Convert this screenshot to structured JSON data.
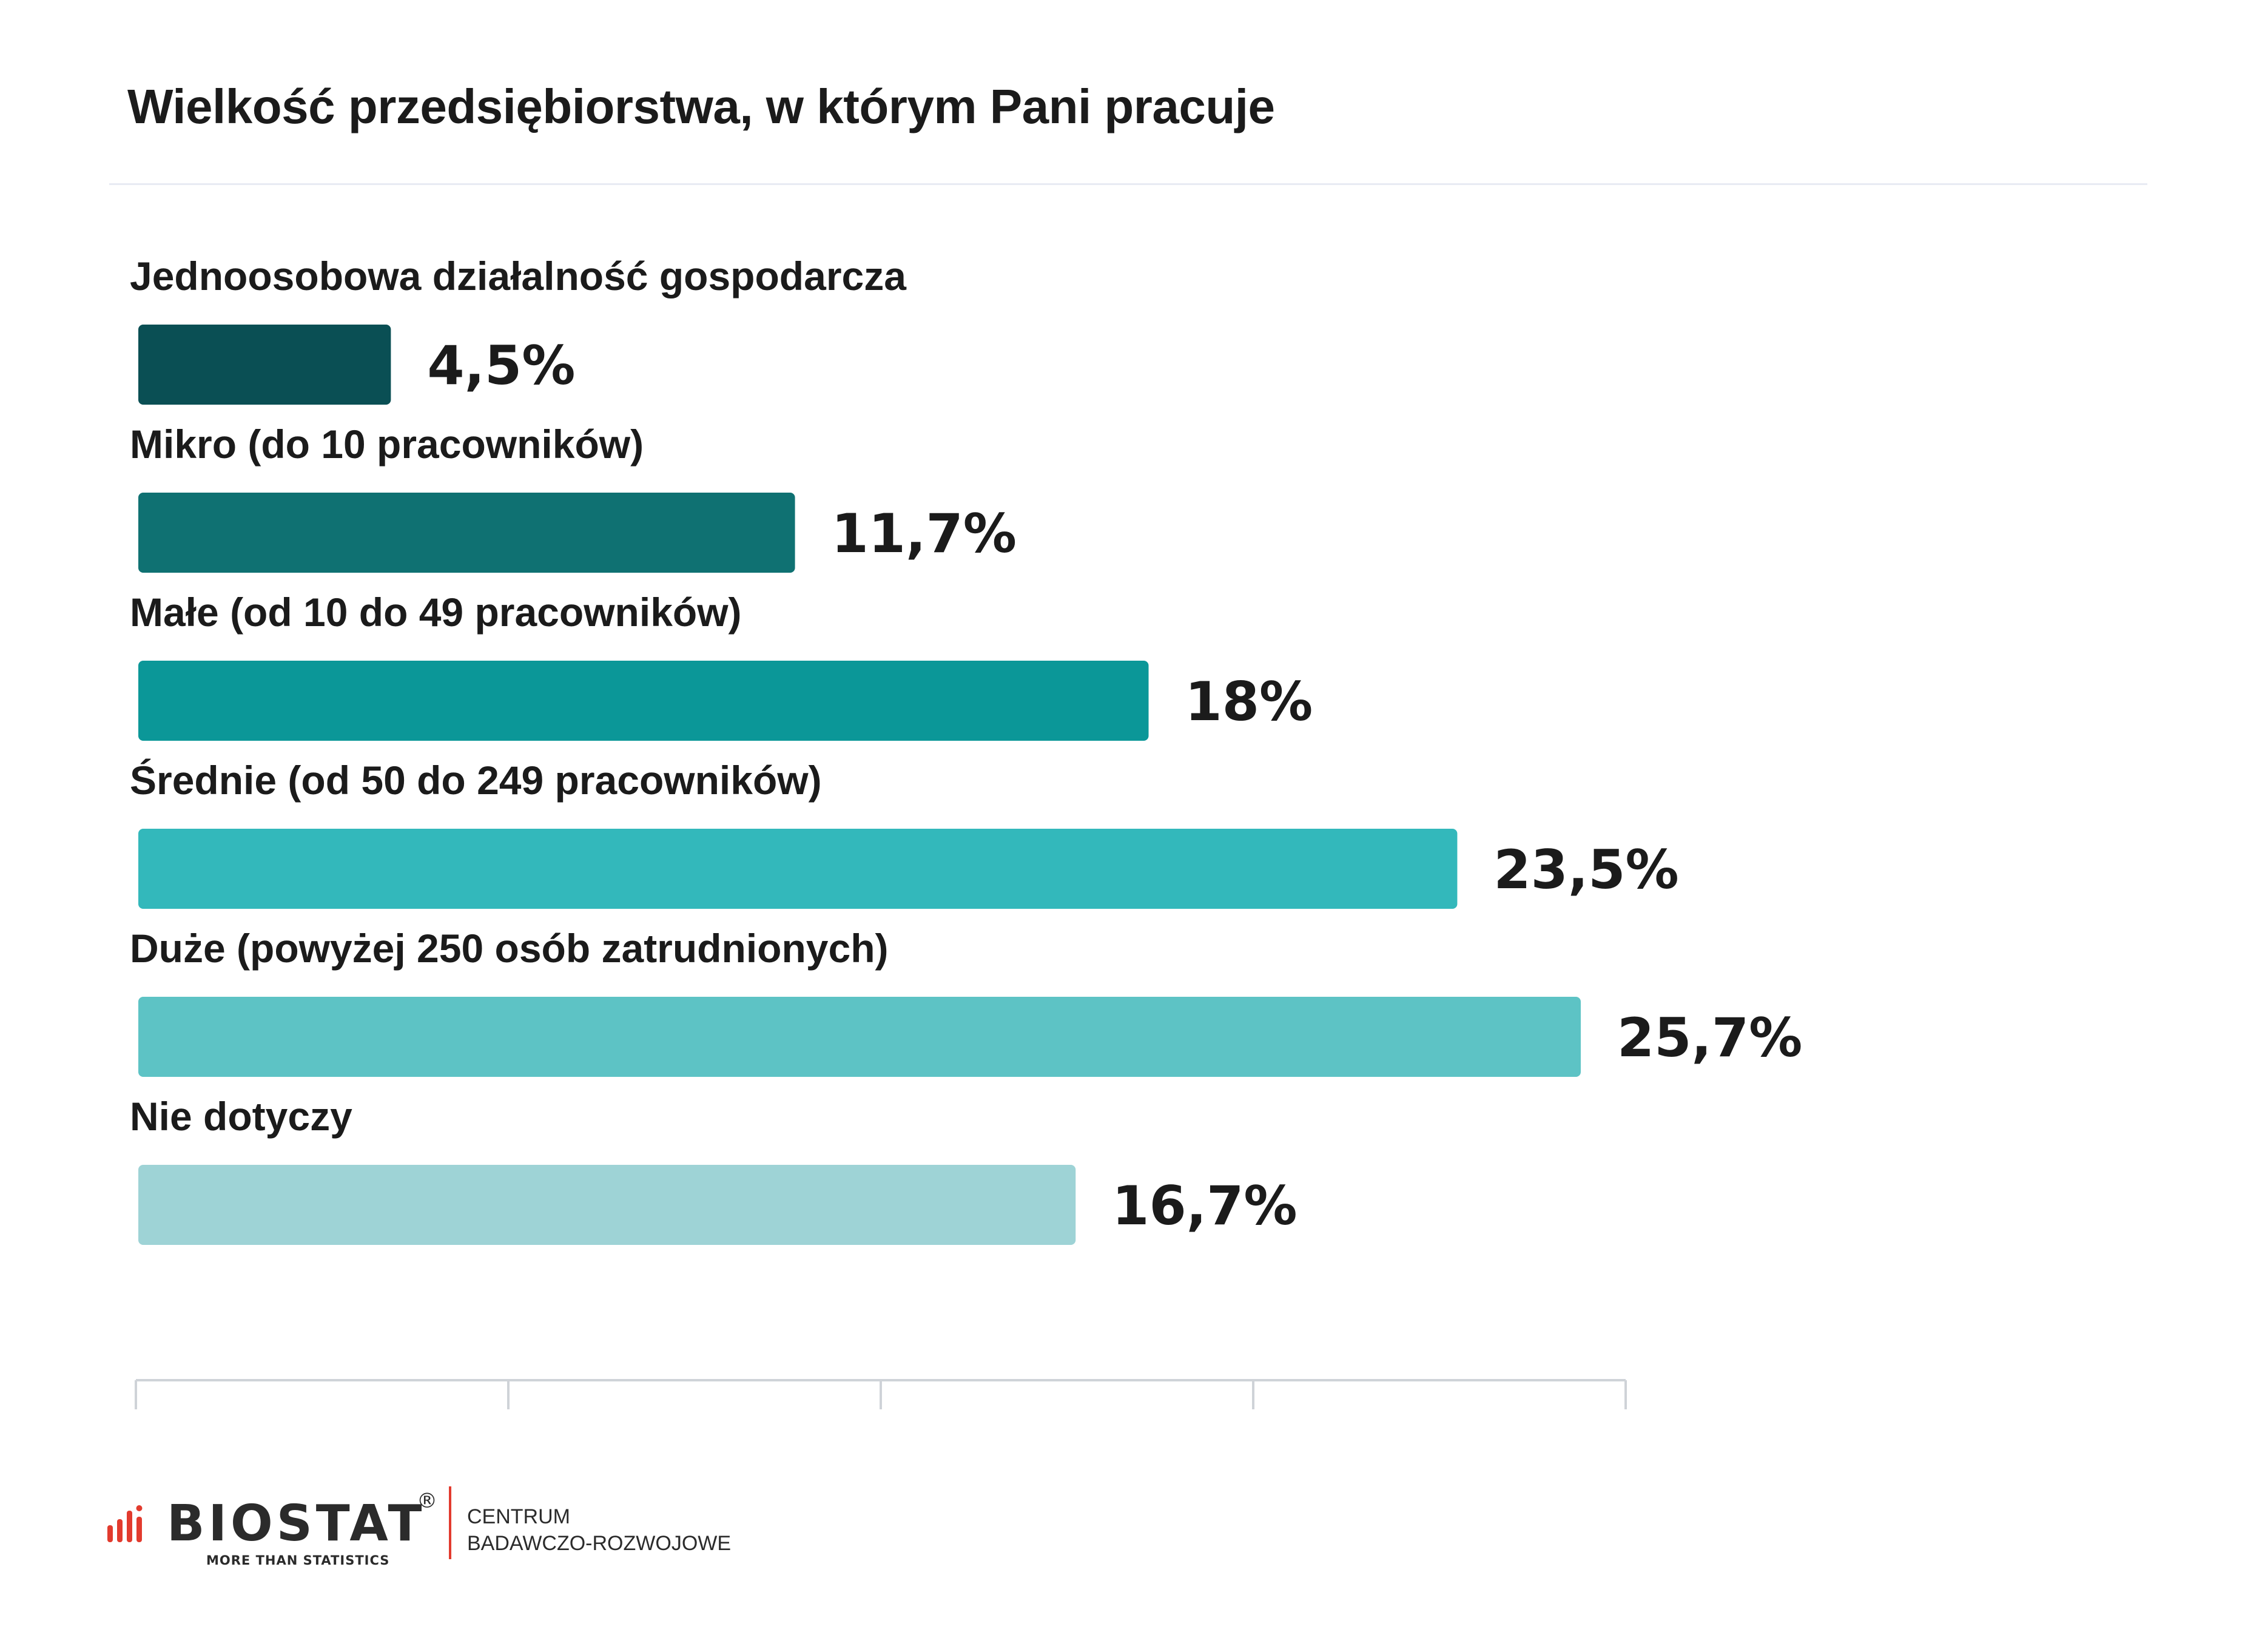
{
  "chart_data": {
    "type": "bar",
    "orientation": "horizontal",
    "title": "Wielkość przedsiębiorstwa, w którym Pani pracuje",
    "categories": [
      "Jednoosobowa działalność gospodarcza",
      "Mikro (do 10 pracowników)",
      "Małe (od 10 do 49 pracowników)",
      "Średnie (od 50 do 249 pracowników)",
      "Duże (powyżej 250 osób zatrudnionych)",
      "Nie dotyczy"
    ],
    "values": [
      4.5,
      11.7,
      18,
      23.5,
      25.7,
      16.7
    ],
    "value_labels": [
      "4,5%",
      "11,7%",
      "18%",
      "23,5%",
      "25,7%",
      "16,7%"
    ],
    "colors": [
      "#0a4f54",
      "#0f7172",
      "#0b9798",
      "#33b8bb",
      "#5dc3c5",
      "#9ed3d6"
    ],
    "xlim": [
      0,
      26.5
    ],
    "axis_ticks": 5,
    "grid": false,
    "legend": "none"
  },
  "footer": {
    "brand": "BIOSTAT",
    "registered": "®",
    "tagline": "MORE THAN STATISTICS",
    "subtitle_line1": "CENTRUM",
    "subtitle_line2": "BADAWCZO-ROZWOJOWE",
    "brand_color": "#e23b2e"
  }
}
